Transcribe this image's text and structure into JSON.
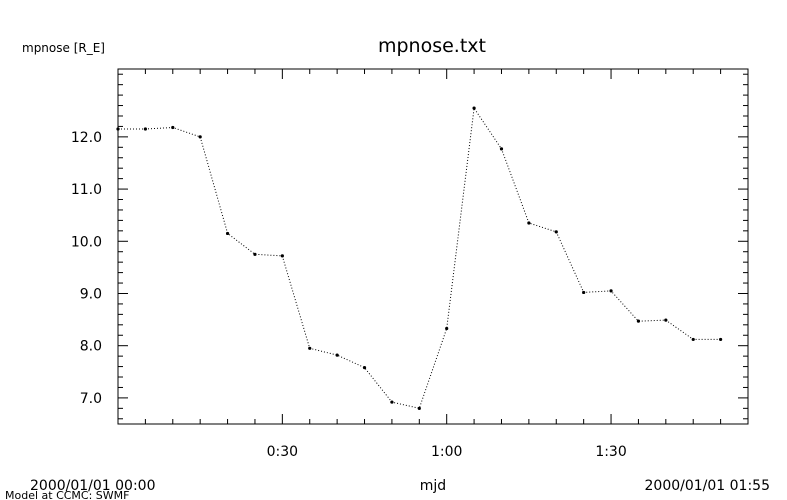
{
  "chart_data": {
    "type": "line",
    "title": "mpnose.txt",
    "ylabel": "mpnose [R_E]",
    "xlabel": "mjd",
    "x_start_label": "2000/01/01 00:00",
    "x_end_label": "2000/01/01 01:55",
    "credit": "Model at CCMC: SWMF",
    "x_unit": "minutes",
    "xlim": [
      0,
      115
    ],
    "ylim": [
      6.5,
      13.3
    ],
    "x_ticks": [
      {
        "value": 30,
        "label": "0:30"
      },
      {
        "value": 60,
        "label": "1:00"
      },
      {
        "value": 90,
        "label": "1:30"
      }
    ],
    "y_ticks": [
      {
        "value": 7.0,
        "label": "7.0"
      },
      {
        "value": 8.0,
        "label": "8.0"
      },
      {
        "value": 9.0,
        "label": "9.0"
      },
      {
        "value": 10.0,
        "label": "10.0"
      },
      {
        "value": 11.0,
        "label": "11.0"
      },
      {
        "value": 12.0,
        "label": "12.0"
      }
    ],
    "x_minor_step": 5,
    "y_minor_step": 0.2,
    "grid": false,
    "line_style": "dotted",
    "series": [
      {
        "x": [
          0,
          5,
          10,
          15,
          20,
          25,
          30,
          35,
          40,
          45,
          50,
          55,
          60,
          65,
          70,
          75,
          80,
          85,
          90,
          95,
          100,
          105,
          110
        ],
        "values": [
          12.15,
          12.15,
          12.18,
          12.0,
          10.15,
          9.75,
          9.72,
          7.95,
          7.82,
          7.58,
          6.92,
          6.8,
          8.33,
          12.55,
          11.77,
          10.35,
          10.18,
          9.02,
          9.05,
          8.47,
          8.49,
          8.12,
          8.12
        ]
      }
    ]
  }
}
